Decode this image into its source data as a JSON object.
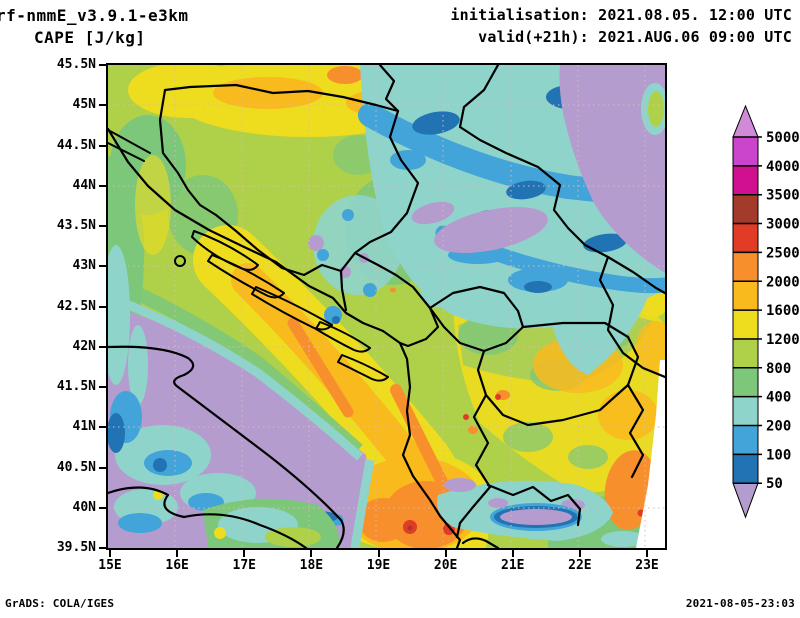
{
  "header": {
    "model": "rf-nmmE_v3.9.1-e3km",
    "variable": "CAPE [J/kg]",
    "init": "initialisation: 2021.08.05. 12:00 UTC",
    "valid": "valid(+21h): 2021.AUG.06 09:00 UTC"
  },
  "map": {
    "lat_labels": [
      "45.5N",
      "45N",
      "44.5N",
      "44N",
      "43.5N",
      "43N",
      "42.5N",
      "42N",
      "41.5N",
      "41N",
      "40.5N",
      "40N",
      "39.5N"
    ],
    "lon_labels": [
      "15E",
      "16E",
      "17E",
      "18E",
      "19E",
      "20E",
      "21E",
      "22E",
      "23E"
    ]
  },
  "colorbar": {
    "tick_labels": [
      "5000",
      "4000",
      "3500",
      "3000",
      "2500",
      "2000",
      "1600",
      "1200",
      "800",
      "400",
      "200",
      "100",
      "50"
    ],
    "segment_colors_top_to_bottom": [
      "#ca45cc",
      "#d1108f",
      "#a33b2b",
      "#e03c26",
      "#f78f2d",
      "#f9ba1e",
      "#eedc1e",
      "#aed149",
      "#7dc77a",
      "#8fd4cb",
      "#42a4d9",
      "#2173b3"
    ],
    "above_max_color": "#d08ad8",
    "below_min_color": "#b59ccf",
    "units": "J/kg"
  },
  "footer": {
    "credit": "GrADS: COLA/IGES",
    "generated": "2021-08-05-23:03"
  }
}
